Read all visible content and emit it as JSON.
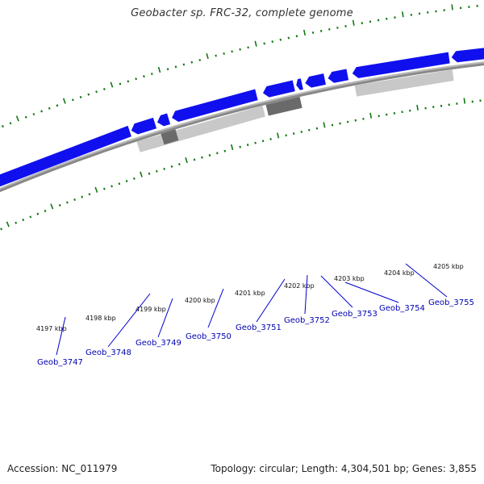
{
  "title": "Geobacter sp. FRC-32, complete genome",
  "footer": {
    "accession": "Accession: NC_011979",
    "summary": "Topology: circular; Length: 4,304,501 bp; Genes: 3,855"
  },
  "colors": {
    "forward_gene": "#1010ee",
    "reverse_gene": "#c8c8c8",
    "reverse_gene_dark": "#6a6a6a",
    "backbone": "#888888",
    "ticks": "#117711",
    "label_line": "#0000cc"
  },
  "scale_labels": [
    "4197 kbp",
    "4198 kbp",
    "4199 kbp",
    "4200 kbp",
    "4201 kbp",
    "4202 kbp",
    "4203 kbp",
    "4204 kbp",
    "4205 kbp"
  ],
  "genes": [
    "Geob_3747",
    "Geob_3748",
    "Geob_3749",
    "Geob_3750",
    "Geob_3751",
    "Geob_3752",
    "Geob_3753",
    "Geob_3754",
    "Geob_3755"
  ]
}
